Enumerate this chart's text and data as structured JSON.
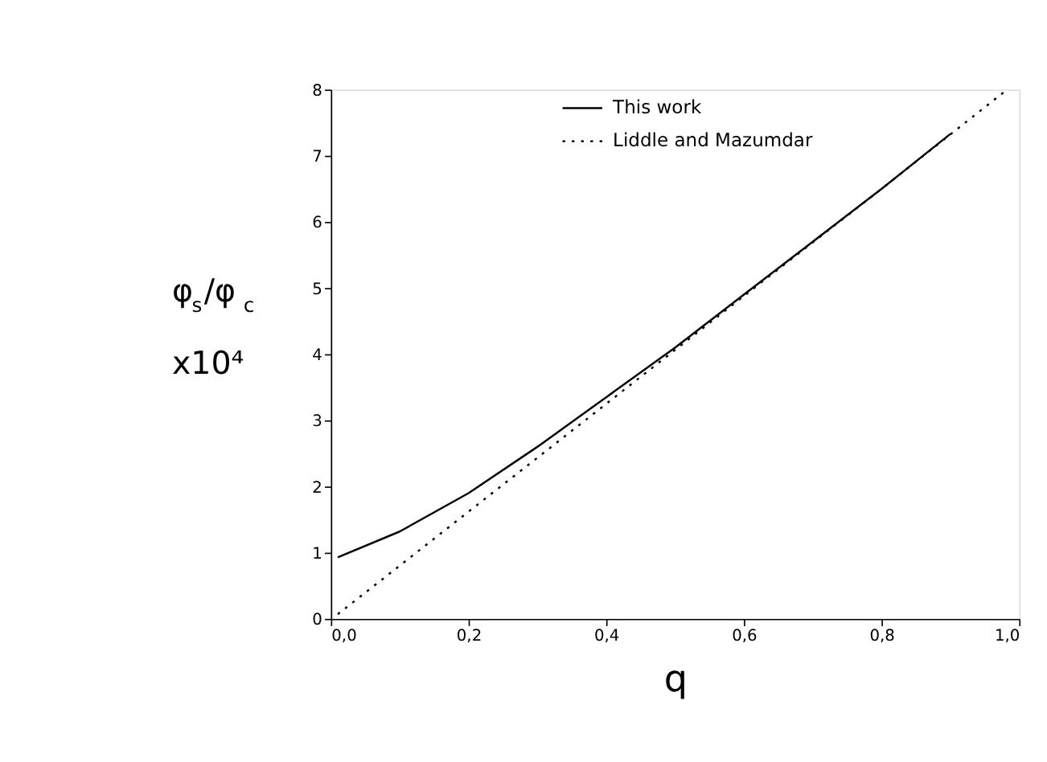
{
  "chart_data": {
    "type": "line",
    "xlabel": "q",
    "ylabel": "φ$_{s}$/φ$_{c}$ x10⁴",
    "xlim": [
      0,
      1
    ],
    "ylim": [
      0,
      8
    ],
    "xticks": [
      {
        "value": 0,
        "label": "0,0"
      },
      {
        "value": 0.2,
        "label": "0,2"
      },
      {
        "value": 0.4,
        "label": "0,4"
      },
      {
        "value": 0.6,
        "label": "0,6"
      },
      {
        "value": 0.8,
        "label": "0,8"
      },
      {
        "value": 1,
        "label": "1,0"
      }
    ],
    "yticks": [
      0,
      1,
      2,
      3,
      4,
      5,
      6,
      7,
      8
    ],
    "grid": false,
    "legend": "top",
    "marker": "none",
    "series": [
      {
        "name": "This work",
        "color": "#000000",
        "line_style": "solid",
        "x": [
          0.01,
          0.1,
          0.2,
          0.3,
          0.4,
          0.5,
          0.6,
          0.7,
          0.8,
          0.9
        ],
        "values": [
          0.93,
          1.32,
          1.9,
          2.6,
          3.35,
          4.1,
          4.9,
          5.7,
          6.5,
          7.33
        ]
      },
      {
        "name": "Liddle and Mazumdar",
        "color": "#000000",
        "line_style": "dotted",
        "x": [
          0.01,
          0.2,
          0.4,
          0.6,
          0.8,
          0.98
        ],
        "values": [
          0.07,
          1.62,
          3.25,
          4.88,
          6.5,
          7.98
        ]
      }
    ]
  }
}
